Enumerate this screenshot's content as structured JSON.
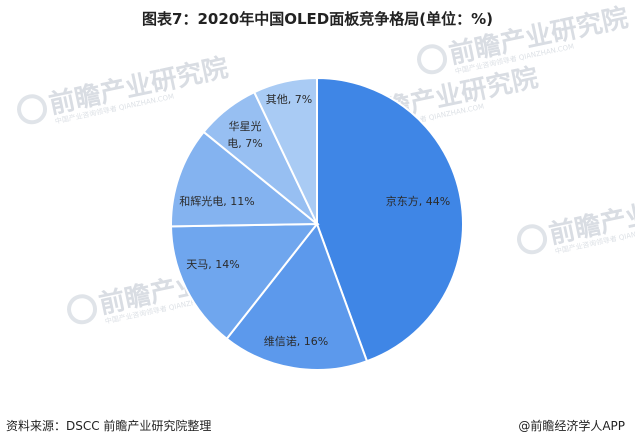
{
  "chart_data": {
    "type": "pie",
    "title": "图表7：2020年中国OLED面板竞争格局(单位：%)",
    "slices": [
      {
        "label": "京东方",
        "value": 44,
        "text": "京东方, 44%",
        "color": "#3f86e6"
      },
      {
        "label": "维信诺",
        "value": 16,
        "text": "维信诺, 16%",
        "color": "#5c99ec"
      },
      {
        "label": "天马",
        "value": 14,
        "text": "天马, 14%",
        "color": "#6fa6ee"
      },
      {
        "label": "和辉光电",
        "value": 11,
        "text": "和辉光电, 11%",
        "color": "#84b3f0"
      },
      {
        "label": "华星光电",
        "value": 7,
        "text_lines": [
          "华星光",
          "电, 7%"
        ],
        "color": "#97bff2"
      },
      {
        "label": "其他",
        "value": 7,
        "text": "其他, 7%",
        "color": "#a9cbf4"
      }
    ]
  },
  "footer": {
    "source": "资料来源：DSCC 前瞻产业研究院整理",
    "brand": "@前瞻经济学人APP"
  },
  "watermark": {
    "text": "前瞻产业研究院",
    "sub": "中国产业咨询领导者 QIANZHAN.COM"
  }
}
